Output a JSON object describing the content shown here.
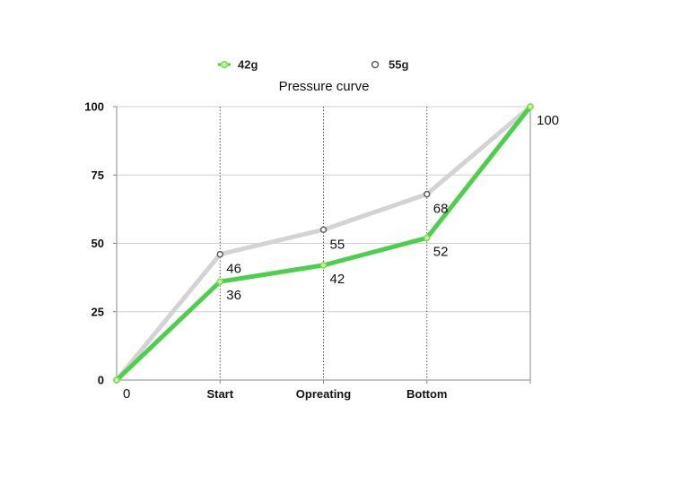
{
  "chart_data": {
    "type": "line",
    "title": "Pressure curve",
    "xlabel": "",
    "ylabel": "",
    "categories": [
      "0",
      "Start",
      "Opreating",
      "Bottom",
      ""
    ],
    "ylim": [
      0,
      100
    ],
    "yticks": [
      "0",
      "25",
      "50",
      "75",
      "100"
    ],
    "grid": true,
    "legend_position": "top",
    "series": [
      {
        "name": "42g",
        "color": "#4cd04c",
        "values": [
          0,
          36,
          42,
          52,
          100
        ],
        "data_labels": [
          "0",
          "36",
          "42",
          "52",
          "100"
        ]
      },
      {
        "name": "55g",
        "color": "#d3d3d3",
        "marker_color": "#666666",
        "values": [
          0,
          46,
          55,
          68,
          100
        ],
        "data_labels": [
          "",
          "46",
          "55",
          "68",
          ""
        ]
      }
    ]
  }
}
